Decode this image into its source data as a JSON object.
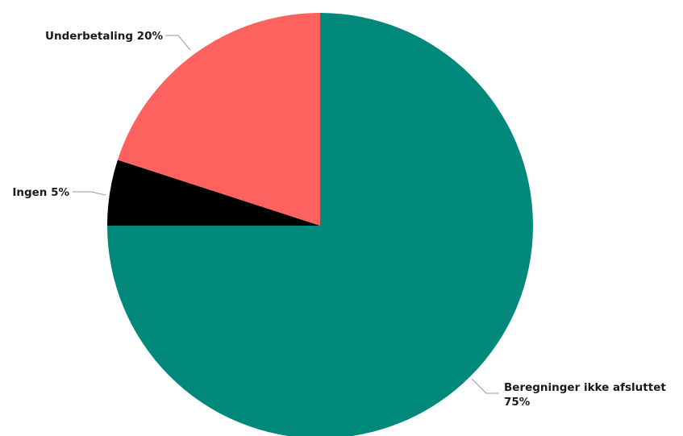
{
  "chart_data": {
    "type": "pie",
    "title": "",
    "start_angle": "12 o'clock",
    "direction": "clockwise",
    "slices": [
      {
        "name": "Beregninger ikke afsluttet",
        "value": 75,
        "label_lines": [
          "Beregninger ikke afsluttet",
          "75%"
        ],
        "color": "#00897B"
      },
      {
        "name": "Ingen",
        "value": 5,
        "label_lines": [
          "Ingen 5%"
        ],
        "color": "#000000"
      },
      {
        "name": "Underbetaling",
        "value": 20,
        "label_lines": [
          "Underbetaling 20%"
        ],
        "color": "#FD625E"
      }
    ]
  }
}
